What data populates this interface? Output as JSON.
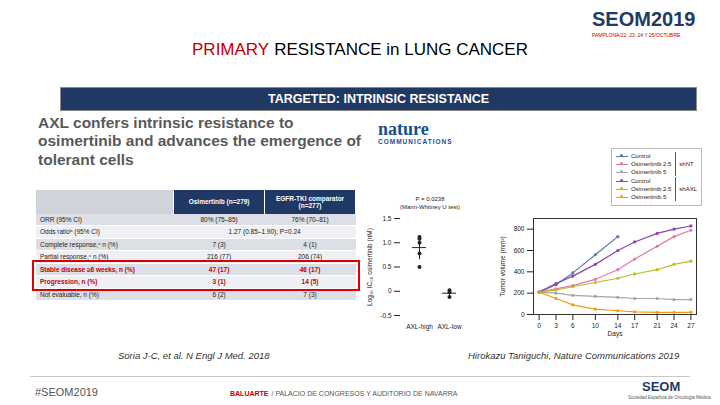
{
  "slide": {
    "logo": {
      "name": "SEOM2019",
      "subtitle": "PAMPLONA/22, 23, 24 Y 25/OCTUBRE"
    },
    "title": [
      {
        "text": "PRIMARY",
        "color": "#c00000"
      },
      {
        "text": "RESISTANCE in LUNG CANCER",
        "color": "#000000"
      }
    ],
    "banner": "TARGETED: INTRINSIC RESISTANCE",
    "heading": "AXL confers intrinsic resistance to osimertinib and advances the emergence of tolerant cells",
    "journal_logo": [
      "nature",
      "COMMUNICATIONS"
    ],
    "captions": [
      "Soria J-C, et al. N Engl J Med. 2018",
      "Hirokazu Taniguchi, Nature Communications 2019"
    ],
    "footer": {
      "hashtag": "#SEOM2019",
      "venue": [
        {
          "text": "BALUARTE",
          "color": "#c00000"
        },
        {
          "text": "/ PALACIO DE CONGRESOS Y AUDITORIO DE NAVARRA",
          "color": "#555555"
        }
      ],
      "society": [
        "SEOM",
        "Sociedad Española de Oncología Médica"
      ]
    }
  },
  "table": {
    "header": [
      null,
      "Osimertinib (n=279)",
      "EGFR-TKI comparator (n=277)"
    ],
    "rows": [
      {
        "cells": [
          "ORR (95% CI)",
          "80% (75–85)",
          "76% (70–81)"
        ]
      },
      {
        "cells": [
          "Odds ratioᵇ (95% CI)",
          "1.27 (0.85–1.90); P=0.24"
        ]
      },
      {
        "cells": [
          "Complete response,ᶜ n (%)",
          "7 (3)",
          "4 (1)"
        ]
      },
      {
        "cells": [
          "Partial response,ᶜ n (%)",
          "216 (77)",
          "206 (74)"
        ]
      },
      {
        "cells": [
          "Stable disease ≥6 weeks, n (%)",
          "47 (17)",
          "46 (17)"
        ],
        "highlight": true
      },
      {
        "cells": [
          "Progression, n (%)",
          "3 (1)",
          "14 (5)"
        ],
        "highlight": true
      },
      {
        "cells": [
          "Not evaluable, n (%)",
          "6 (2)",
          "7 (3)"
        ]
      }
    ]
  },
  "chart_data": [
    {
      "type": "scatter",
      "categories": [
        "AXL-high",
        "AXL-low"
      ],
      "points": [
        [
          1.12,
          1.08,
          1.0,
          0.78,
          0.5
        ],
        [
          0.02,
          -0.02,
          -0.12
        ]
      ],
      "mean": [
        0.9,
        -0.04
      ],
      "error": [
        0.25,
        0.06
      ],
      "annotations": [
        "P = 0.0238",
        "(Mann-Whitney U test)"
      ],
      "y_label": "Log₁₀ IC₅₀ osimertinib (nM)",
      "ylim": [
        -0.5,
        1.5
      ],
      "yticks": [
        -0.5,
        0,
        0.5,
        {
          "value": 1,
          "label": "1.0"
        },
        1.5
      ],
      "color": "#222222"
    },
    {
      "type": "line",
      "x": [
        0,
        3,
        6,
        10,
        14,
        17,
        21,
        24,
        27
      ],
      "xlim": [
        -1,
        28
      ],
      "xticks": [
        0,
        3,
        6,
        10,
        14,
        17,
        21,
        24,
        27
      ],
      "ylim": [
        0,
        900
      ],
      "yticks": [
        0,
        200,
        400,
        600,
        800
      ],
      "x_label": "Days",
      "y_label": "Tumor volume (mm³)",
      "legend": "top-right",
      "marker": "circle",
      "series": [
        {
          "name": "Control",
          "group": "shNT",
          "color": "#5a78b0",
          "values": [
            210,
            280,
            390,
            560,
            730,
            null,
            null,
            null,
            null
          ]
        },
        {
          "name": "Osimertinib 2.5",
          "group": "shNT",
          "color": "#e377a8",
          "values": [
            210,
            240,
            270,
            330,
            420,
            520,
            640,
            730,
            790
          ]
        },
        {
          "name": "Osimertinib 5",
          "group": "shNT",
          "color": "#a6a6a6",
          "values": [
            210,
            200,
            180,
            170,
            160,
            150,
            150,
            140,
            140
          ]
        },
        {
          "name": "Control",
          "group": "shAXL",
          "color": "#8e44ad",
          "values": [
            210,
            290,
            360,
            470,
            600,
            680,
            760,
            800,
            830
          ]
        },
        {
          "name": "Osimertinib 2.5",
          "group": "shAXL",
          "color": "#bcbd22",
          "values": [
            210,
            230,
            260,
            300,
            340,
            380,
            420,
            470,
            500
          ]
        },
        {
          "name": "Osimertinib 5",
          "group": "shAXL",
          "color": "#f39c12",
          "values": [
            210,
            150,
            90,
            50,
            35,
            25,
            20,
            20,
            20
          ]
        }
      ]
    }
  ]
}
